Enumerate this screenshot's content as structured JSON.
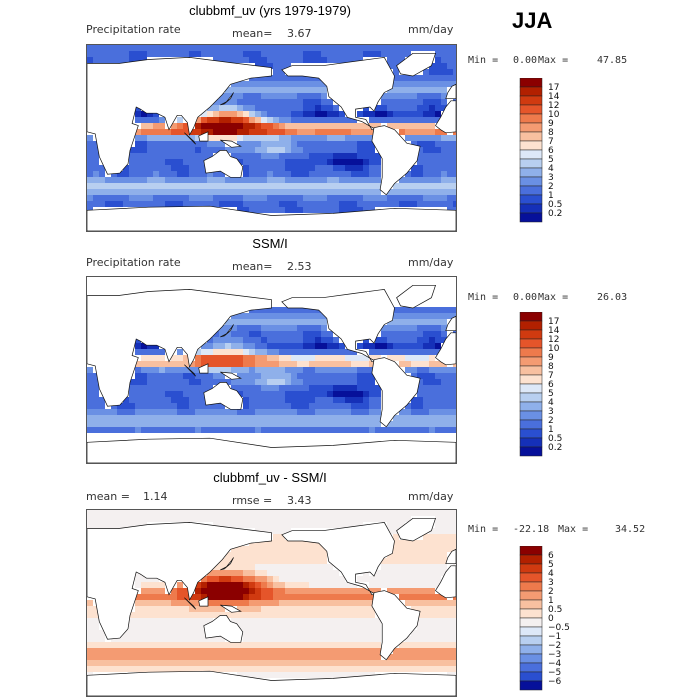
{
  "season": "JJA",
  "panels": [
    {
      "title": "clubbmf_uv (yrs 1979-1979)",
      "left_label": "Precipitation rate",
      "mean_label": "mean=",
      "mean_value": "3.67",
      "units": "mm/day",
      "min_label": "Min =",
      "min_value": "0.00",
      "max_label": "Max =",
      "max_value": "47.85",
      "colorbar": [
        "17",
        "14",
        "12",
        "10",
        "9",
        "8",
        "7",
        "6",
        "5",
        "4",
        "3",
        "2",
        "1",
        "0.5",
        "0.2"
      ]
    },
    {
      "title": "SSM/I",
      "left_label": "Precipitation rate",
      "mean_label": "mean=",
      "mean_value": "2.53",
      "units": "mm/day",
      "min_label": "Min =",
      "min_value": "0.00",
      "max_label": "Max =",
      "max_value": "26.03",
      "colorbar": [
        "17",
        "14",
        "12",
        "10",
        "9",
        "8",
        "7",
        "6",
        "5",
        "4",
        "3",
        "2",
        "1",
        "0.5",
        "0.2"
      ]
    },
    {
      "title": "clubbmf_uv - SSM/I",
      "mean_label": "mean =",
      "mean_value": "1.14",
      "rmse_label": "rmse =",
      "rmse_value": "3.43",
      "units": "mm/day",
      "min_label": "Min =",
      "min_value": "-22.18",
      "max_label": "Max =",
      "max_value": "34.52",
      "colorbar": [
        "6",
        "5",
        "4",
        "3",
        "2",
        "1",
        "0.5",
        "0",
        "−0.5",
        "−1",
        "−2",
        "−3",
        "−4",
        "−5",
        "−6"
      ]
    }
  ],
  "colors": {
    "seq": [
      "#8b0000",
      "#b22000",
      "#d03a10",
      "#e5552a",
      "#ee7a4c",
      "#f49b72",
      "#f8c0a0",
      "#fde2d0",
      "#dde8f8",
      "#b8cff0",
      "#8fb0ea",
      "#6a90e4",
      "#4a6fdc",
      "#2a4fd0",
      "#1530b8",
      "#06109a"
    ],
    "div": [
      "#8b0000",
      "#b22000",
      "#d03a10",
      "#e5552a",
      "#ee7a4c",
      "#f49b72",
      "#f8c0a0",
      "#fde2d0",
      "#f4f0f0",
      "#dde8f8",
      "#b8cff0",
      "#8fb0ea",
      "#6a90e4",
      "#4a6fdc",
      "#2a4fd0",
      "#06109a"
    ]
  },
  "chart_data": [
    {
      "type": "heatmap",
      "title": "clubbmf_uv (yrs 1979-1979)",
      "variable": "Precipitation rate",
      "units": "mm/day",
      "season": "JJA",
      "mean": 3.67,
      "min": 0.0,
      "max": 47.85,
      "colorbar_levels": [
        0.2,
        0.5,
        1,
        2,
        3,
        4,
        5,
        6,
        7,
        8,
        9,
        10,
        12,
        14,
        17
      ]
    },
    {
      "type": "heatmap",
      "title": "SSM/I",
      "variable": "Precipitation rate",
      "units": "mm/day",
      "season": "JJA",
      "mean": 2.53,
      "min": 0.0,
      "max": 26.03,
      "colorbar_levels": [
        0.2,
        0.5,
        1,
        2,
        3,
        4,
        5,
        6,
        7,
        8,
        9,
        10,
        12,
        14,
        17
      ]
    },
    {
      "type": "heatmap",
      "title": "clubbmf_uv - SSM/I",
      "units": "mm/day",
      "season": "JJA",
      "mean": 1.14,
      "rmse": 3.43,
      "min": -22.18,
      "max": 34.52,
      "colorbar_levels": [
        -6,
        -5,
        -4,
        -3,
        -2,
        -1,
        -0.5,
        0,
        0.5,
        1,
        2,
        3,
        4,
        5,
        6
      ]
    }
  ]
}
